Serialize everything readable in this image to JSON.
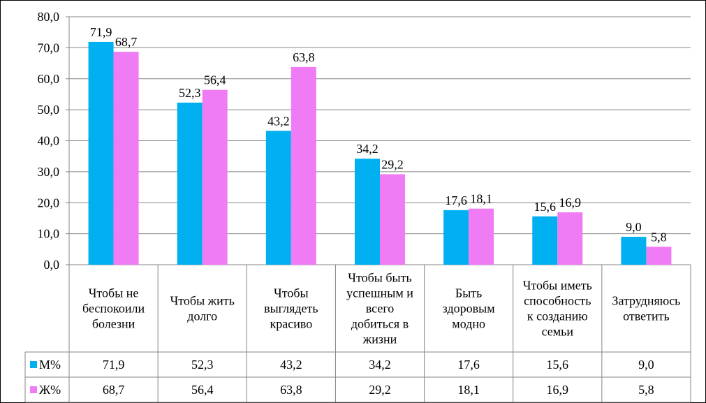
{
  "chart_data": {
    "type": "bar",
    "categories": [
      [
        "Чтобы не",
        "беспокоили",
        "болезни"
      ],
      [
        "Чтобы жить",
        "долго"
      ],
      [
        "Чтобы",
        "выглядеть",
        "красиво"
      ],
      [
        "Чтобы быть",
        "успешным  и",
        "всего",
        "добиться в",
        "жизни"
      ],
      [
        "Быть",
        "здоровым",
        "модно"
      ],
      [
        "Чтобы иметь",
        "способность",
        "к созданию",
        "семьи"
      ],
      [
        "Затрудняюсь",
        "ответить"
      ]
    ],
    "series": [
      {
        "name": "М%",
        "color": "#00B0F0",
        "values": [
          71.9,
          52.3,
          43.2,
          34.2,
          17.6,
          15.6,
          9.0
        ],
        "labels": [
          "71,9",
          "52,3",
          "43,2",
          "34,2",
          "17,6",
          "15,6",
          "9,0"
        ]
      },
      {
        "name": "Ж%",
        "color": "#F07CF5",
        "values": [
          68.7,
          56.4,
          63.8,
          29.2,
          18.1,
          16.9,
          5.8
        ],
        "labels": [
          "68,7",
          "56,4",
          "63,8",
          "29,2",
          "18,1",
          "16,9",
          "5,8"
        ]
      }
    ],
    "ylim": [
      0,
      80
    ],
    "yticks": [
      "0,0",
      "10,0",
      "20,0",
      "30,0",
      "40,0",
      "50,0",
      "60,0",
      "70,0",
      "80,0"
    ],
    "grid": true,
    "legend": "data-table-left"
  }
}
